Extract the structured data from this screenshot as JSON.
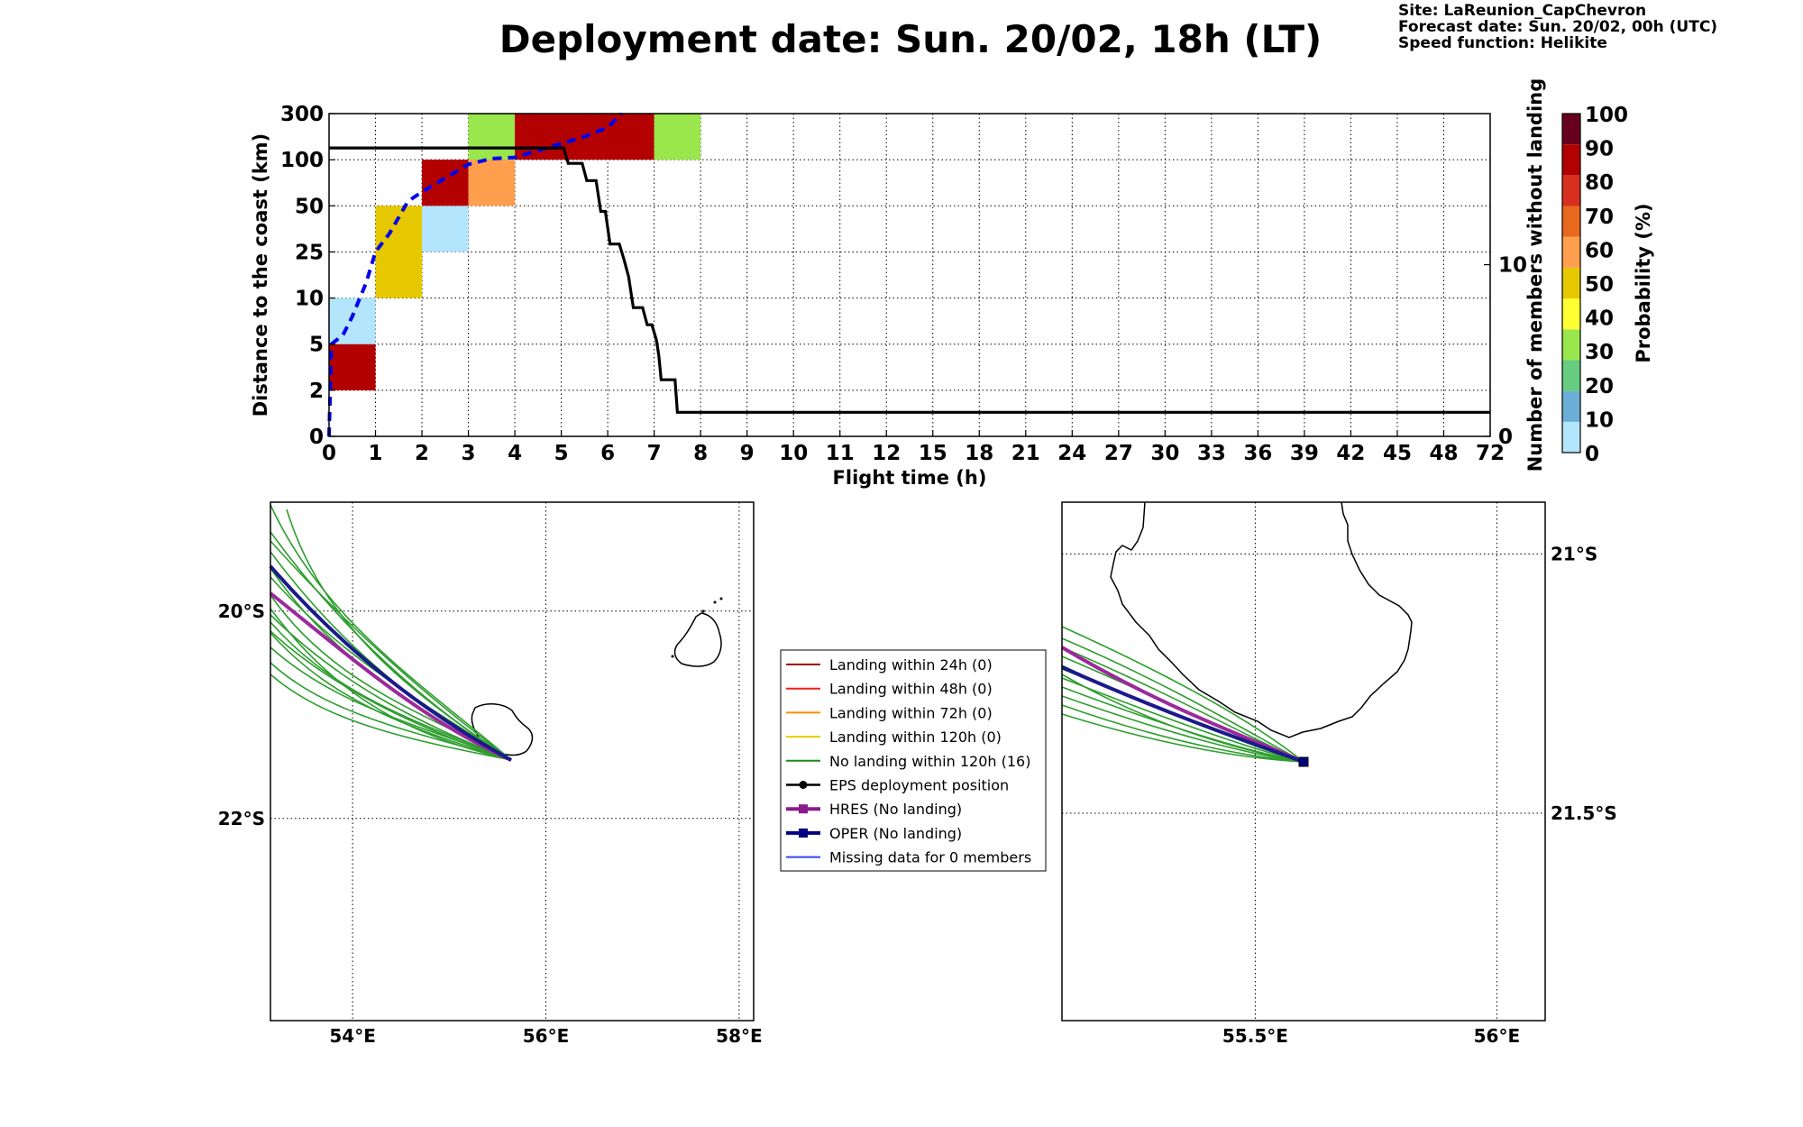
{
  "header": {
    "title": "Deployment date: Sun. 20/02, 18h (LT)",
    "site": "Site: LaReunion_CapChevron",
    "forecast": "Forecast date: Sun. 20/02, 00h (UTC)",
    "speed": "Speed function: Helikite"
  },
  "chart_data": [
    {
      "type": "heatmap",
      "xlabel": "Flight time (h)",
      "ylabel": "Distance to the coast (km)",
      "y2label": "Number of members without landing",
      "x_ticks": [
        "0",
        "1",
        "2",
        "3",
        "4",
        "5",
        "6",
        "7",
        "8",
        "9",
        "10",
        "11",
        "12",
        "15",
        "18",
        "21",
        "24",
        "27",
        "30",
        "33",
        "36",
        "39",
        "42",
        "45",
        "48",
        "72"
      ],
      "y_ticks": [
        "0",
        "2",
        "5",
        "10",
        "25",
        "50",
        "100",
        "300"
      ],
      "y2_ticks": [
        "0",
        "10"
      ],
      "y2_range": [
        0,
        18.8
      ],
      "grid": true,
      "cells": [
        {
          "x": [
            0,
            1
          ],
          "y": [
            2,
            5
          ],
          "probability": 95
        },
        {
          "x": [
            0,
            1
          ],
          "y": [
            5,
            10
          ],
          "probability": 5
        },
        {
          "x": [
            1,
            2
          ],
          "y": [
            10,
            50
          ],
          "probability": 50
        },
        {
          "x": [
            2,
            3
          ],
          "y": [
            25,
            50
          ],
          "probability": 5
        },
        {
          "x": [
            2,
            3
          ],
          "y": [
            50,
            100
          ],
          "probability": 95
        },
        {
          "x": [
            3,
            4
          ],
          "y": [
            50,
            100
          ],
          "probability": 60
        },
        {
          "x": [
            3,
            4
          ],
          "y": [
            100,
            300
          ],
          "probability": 30
        },
        {
          "x": [
            4,
            7
          ],
          "y": [
            100,
            300
          ],
          "probability": 95
        },
        {
          "x": [
            7,
            8
          ],
          "y": [
            100,
            300
          ],
          "probability": 30
        }
      ],
      "series": [
        {
          "style": "dashed-blue",
          "axis": "left",
          "points": [
            [
              0,
              0
            ],
            [
              0.05,
              5
            ],
            [
              0.3,
              6
            ],
            [
              0.5,
              8
            ],
            [
              0.8,
              15
            ],
            [
              1,
              25
            ],
            [
              1.3,
              35
            ],
            [
              1.7,
              55
            ],
            [
              2,
              65
            ],
            [
              2.5,
              80
            ],
            [
              3,
              95
            ],
            [
              3.5,
              105
            ],
            [
              4,
              110
            ],
            [
              4.5,
              140
            ],
            [
              5,
              170
            ],
            [
              5.5,
              200
            ],
            [
              6,
              240
            ],
            [
              6.3,
              300
            ]
          ]
        },
        {
          "style": "solid-black",
          "axis": "right",
          "points": [
            [
              0,
              16.8
            ],
            [
              5.05,
              16.8
            ],
            [
              5.15,
              15.9
            ],
            [
              5.45,
              15.9
            ],
            [
              5.55,
              14.9
            ],
            [
              5.75,
              14.9
            ],
            [
              5.85,
              13.1
            ],
            [
              5.95,
              13.1
            ],
            [
              6.05,
              11.2
            ],
            [
              6.25,
              11.2
            ],
            [
              6.35,
              10.3
            ],
            [
              6.45,
              9.3
            ],
            [
              6.55,
              7.5
            ],
            [
              6.75,
              7.5
            ],
            [
              6.85,
              6.5
            ],
            [
              6.95,
              6.5
            ],
            [
              7.05,
              5.6
            ],
            [
              7.1,
              4.7
            ],
            [
              7.15,
              3.3
            ],
            [
              7.45,
              3.3
            ],
            [
              7.5,
              1.4
            ],
            [
              72,
              1.4
            ]
          ]
        }
      ]
    },
    {
      "type": "colorbar",
      "label": "Probability (%)",
      "ticks": [
        "0",
        "10",
        "20",
        "30",
        "40",
        "50",
        "60",
        "70",
        "80",
        "90",
        "100"
      ],
      "colors": [
        "#b3e5fc",
        "#6baed6",
        "#66cc80",
        "#99e64d",
        "#ffff33",
        "#e6c800",
        "#ff9f4d",
        "#e8681e",
        "#d7301f",
        "#b30000",
        "#67001f"
      ]
    },
    {
      "type": "map",
      "lon_range": [
        53.15,
        58.15
      ],
      "lat_range": [
        -23.95,
        -18.95
      ],
      "lon_ticks": [
        "54°E",
        "56°E",
        "58°E"
      ],
      "lat_ticks": [
        "20°S",
        "22°S"
      ],
      "grid": true
    },
    {
      "type": "map",
      "lon_range": [
        55.1,
        56.1
      ],
      "lat_range": [
        -21.9,
        -20.9
      ],
      "lon_ticks": [
        "55.5°E",
        "56°E"
      ],
      "lat_ticks": [
        "21°S",
        "21.5°S"
      ],
      "grid": true
    }
  ],
  "legend": {
    "entries": [
      {
        "label": "Landing within 24h (0)",
        "color": "#a00000",
        "marker": "none"
      },
      {
        "label": "Landing within 48h (0)",
        "color": "#ee1c1c",
        "marker": "none"
      },
      {
        "label": "Landing within 72h (0)",
        "color": "#ff8c00",
        "marker": "none"
      },
      {
        "label": "Landing within 120h (0)",
        "color": "#e6cc00",
        "marker": "none"
      },
      {
        "label": "No landing within 120h (16)",
        "color": "#1a8c1a",
        "marker": "none"
      },
      {
        "label": "EPS deployment position",
        "color": "#000000",
        "marker": "circle"
      },
      {
        "label": "HRES (No landing)",
        "color": "#8b1a8b",
        "marker": "square"
      },
      {
        "label": "OPER (No landing)",
        "color": "#000080",
        "marker": "square"
      },
      {
        "label": "Missing data for 0 members",
        "color": "#3344ee",
        "marker": "none"
      }
    ]
  }
}
